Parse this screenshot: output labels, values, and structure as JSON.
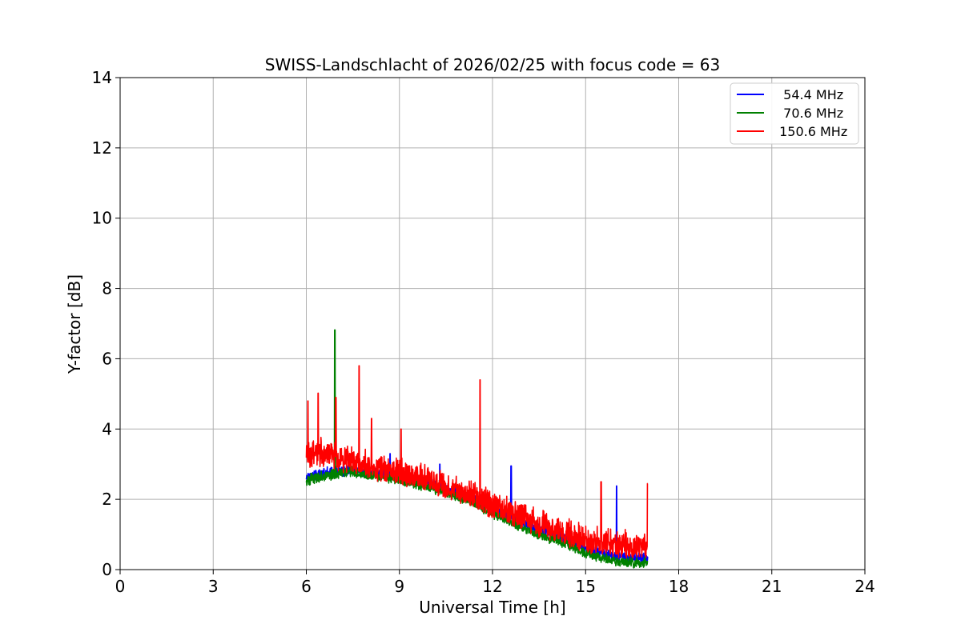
{
  "chart_data": {
    "type": "line",
    "title": "SWISS-Landschlacht of 2026/02/25 with focus code = 63",
    "xlabel": "Universal Time [h]",
    "ylabel": "Y-factor [dB]",
    "xlim": [
      0,
      24
    ],
    "ylim": [
      0,
      14
    ],
    "xticks": [
      0,
      3,
      6,
      9,
      12,
      15,
      18,
      21,
      24
    ],
    "yticks": [
      0,
      2,
      4,
      6,
      8,
      10,
      12,
      14
    ],
    "grid": true,
    "legend_position": "top-right",
    "series": [
      {
        "name": "  54.4 MHz",
        "color": "#0000ff",
        "x": [
          6.0,
          6.5,
          7.0,
          7.5,
          8.0,
          8.5,
          9.0,
          9.5,
          10.0,
          10.5,
          11.0,
          11.5,
          12.0,
          12.5,
          13.0,
          13.5,
          14.0,
          14.5,
          15.0,
          15.5,
          16.0,
          16.5,
          17.0
        ],
        "values": [
          2.6,
          2.7,
          2.75,
          2.8,
          2.7,
          2.7,
          2.6,
          2.5,
          2.4,
          2.25,
          2.1,
          1.9,
          1.7,
          1.5,
          1.3,
          1.1,
          0.95,
          0.8,
          0.6,
          0.45,
          0.35,
          0.3,
          0.3
        ],
        "spikes": [
          {
            "x": 12.6,
            "y": 2.95
          },
          {
            "x": 16.0,
            "y": 2.38
          },
          {
            "x": 8.7,
            "y": 3.3
          },
          {
            "x": 10.3,
            "y": 3.0
          }
        ]
      },
      {
        "name": "  70.6 MHz",
        "color": "#008000",
        "x": [
          6.0,
          6.5,
          7.0,
          7.5,
          8.0,
          8.5,
          9.0,
          9.5,
          10.0,
          10.5,
          11.0,
          11.5,
          12.0,
          12.5,
          13.0,
          13.5,
          14.0,
          14.5,
          15.0,
          15.5,
          16.0,
          16.5,
          17.0
        ],
        "values": [
          2.5,
          2.6,
          2.7,
          2.75,
          2.65,
          2.6,
          2.5,
          2.4,
          2.3,
          2.15,
          2.0,
          1.8,
          1.55,
          1.35,
          1.15,
          0.95,
          0.8,
          0.65,
          0.45,
          0.3,
          0.2,
          0.15,
          0.15
        ],
        "spikes": [
          {
            "x": 6.92,
            "y": 6.82
          },
          {
            "x": 7.4,
            "y": 3.2
          }
        ]
      },
      {
        "name": " 150.6 MHz",
        "color": "#ff0000",
        "x": [
          6.0,
          6.5,
          7.0,
          7.5,
          8.0,
          8.5,
          9.0,
          9.5,
          10.0,
          10.5,
          11.0,
          11.5,
          12.0,
          12.5,
          13.0,
          13.5,
          14.0,
          14.5,
          15.0,
          15.5,
          16.0,
          16.5,
          17.0
        ],
        "values": [
          3.2,
          3.2,
          3.1,
          3.0,
          2.85,
          2.75,
          2.65,
          2.55,
          2.45,
          2.3,
          2.15,
          1.95,
          1.75,
          1.55,
          1.4,
          1.2,
          1.05,
          0.9,
          0.75,
          0.65,
          0.6,
          0.55,
          0.55
        ],
        "spikes": [
          {
            "x": 6.05,
            "y": 4.8
          },
          {
            "x": 6.38,
            "y": 5.02
          },
          {
            "x": 6.95,
            "y": 4.9
          },
          {
            "x": 7.7,
            "y": 5.8
          },
          {
            "x": 8.1,
            "y": 4.3
          },
          {
            "x": 9.05,
            "y": 4.0
          },
          {
            "x": 11.6,
            "y": 5.4
          },
          {
            "x": 15.5,
            "y": 2.5
          },
          {
            "x": 17.0,
            "y": 2.45
          }
        ]
      }
    ]
  }
}
